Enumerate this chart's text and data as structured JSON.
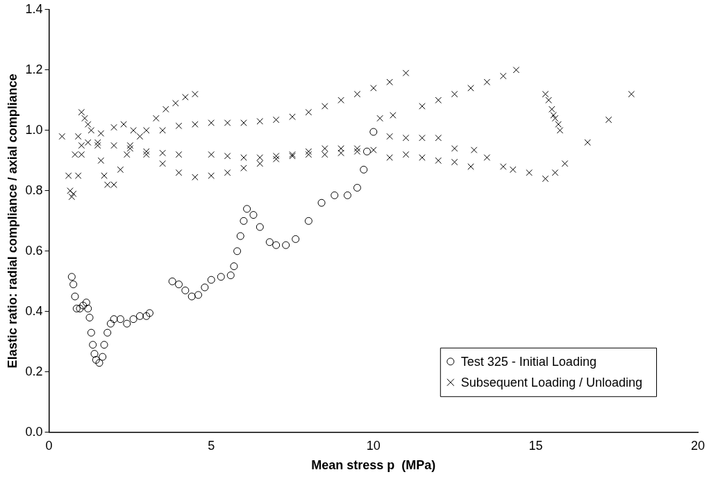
{
  "chart_data": {
    "type": "scatter",
    "xlabel": "Mean stress p  (MPa)",
    "ylabel": "Elastic ratio: radial compliance / axial compliance",
    "xlim": [
      0,
      20
    ],
    "ylim": [
      0,
      1.4
    ],
    "xticks": [
      0,
      5,
      10,
      15,
      20
    ],
    "yticks": [
      {
        "value": 0,
        "label": "0.0"
      },
      {
        "value": 0.2,
        "label": "0.2"
      },
      {
        "value": 0.4,
        "label": "0.4"
      },
      {
        "value": 0.6,
        "label": "0.6"
      },
      {
        "value": 0.8,
        "label": "0.8"
      },
      {
        "value": 1,
        "label": "1.0"
      },
      {
        "value": 1.2,
        "label": "1.2"
      },
      {
        "value": 1.4,
        "label": "1.4"
      }
    ],
    "grid": false,
    "legend": "bottom right",
    "series": [
      {
        "name": "Test 325 - Initial Loading",
        "color": "#000000",
        "marker": "circle",
        "x": [
          0.7,
          0.75,
          0.8,
          0.85,
          0.95,
          1.05,
          1.15,
          1.2,
          1.25,
          1.3,
          1.35,
          1.4,
          1.45,
          1.55,
          1.65,
          1.7,
          1.8,
          1.9,
          2.0,
          2.2,
          2.4,
          2.6,
          2.8,
          3.0,
          3.1,
          3.8,
          4.0,
          4.2,
          4.4,
          4.6,
          4.8,
          5.0,
          5.3,
          5.6,
          5.7,
          5.8,
          5.9,
          6.0,
          6.1,
          6.3,
          6.5,
          6.8,
          7.0,
          7.3,
          7.6,
          8.0,
          8.4,
          8.8,
          9.2,
          9.5,
          9.7,
          9.8,
          10.0
        ],
        "values": [
          0.515,
          0.49,
          0.45,
          0.41,
          0.41,
          0.42,
          0.43,
          0.41,
          0.38,
          0.33,
          0.29,
          0.26,
          0.24,
          0.23,
          0.25,
          0.29,
          0.33,
          0.36,
          0.375,
          0.375,
          0.36,
          0.375,
          0.385,
          0.385,
          0.395,
          0.5,
          0.49,
          0.47,
          0.45,
          0.455,
          0.48,
          0.505,
          0.515,
          0.52,
          0.55,
          0.6,
          0.65,
          0.7,
          0.74,
          0.72,
          0.68,
          0.63,
          0.62,
          0.62,
          0.64,
          0.7,
          0.76,
          0.785,
          0.785,
          0.81,
          0.87,
          0.93,
          0.995
        ]
      },
      {
        "name": "Subsequent Loading / Unloading",
        "color": "#000000",
        "marker": "cross",
        "x": [
          1.0,
          1.5,
          2.0,
          2.5,
          2.8,
          3.0,
          3.3,
          3.6,
          3.9,
          4.2,
          4.5,
          3.5,
          4.0,
          4.5,
          5.0,
          5.5,
          6.0,
          6.5,
          7.0,
          7.5,
          8.0,
          8.5,
          9.0,
          9.5,
          10.0,
          10.5,
          11.0,
          10.2,
          10.6,
          11.5,
          12.0,
          12.5,
          13.0,
          13.5,
          14.0,
          14.4,
          3.0,
          3.5,
          4.0,
          5.0,
          5.5,
          6.0,
          6.5,
          7.0,
          7.5,
          8.0,
          8.5,
          9.0,
          9.5,
          10.0,
          10.5,
          11.0,
          11.5,
          12.0,
          12.5,
          13.0,
          13.5,
          14.0,
          14.3,
          14.8,
          15.3,
          15.6,
          15.9,
          2.5,
          3.0,
          3.5,
          4.0,
          4.5,
          5.0,
          5.5,
          6.0,
          6.5,
          7.0,
          7.5,
          8.0,
          8.5,
          9.0,
          9.5,
          10.5,
          11.0,
          11.5,
          12.0,
          12.5,
          13.1,
          15.3,
          15.4,
          15.5,
          15.55,
          15.6,
          15.7,
          15.75,
          16.6,
          17.25,
          17.95,
          0.4,
          0.6,
          0.65,
          0.7,
          0.75,
          0.8,
          0.9,
          1.0,
          1.1,
          1.2,
          1.3,
          1.5,
          1.6,
          1.7,
          1.8,
          2.0,
          2.2,
          2.4,
          0.9,
          1.0,
          1.2,
          1.6,
          2.0,
          2.3,
          2.6
        ],
        "values": [
          0.95,
          0.96,
          0.95,
          0.95,
          0.98,
          1.0,
          1.04,
          1.07,
          1.09,
          1.11,
          1.12,
          1.0,
          1.015,
          1.02,
          1.025,
          1.025,
          1.025,
          1.03,
          1.035,
          1.045,
          1.06,
          1.08,
          1.1,
          1.12,
          1.14,
          1.16,
          1.19,
          1.04,
          1.05,
          1.08,
          1.1,
          1.12,
          1.14,
          1.16,
          1.18,
          1.2,
          0.93,
          0.925,
          0.92,
          0.92,
          0.915,
          0.91,
          0.91,
          0.915,
          0.915,
          0.92,
          0.92,
          0.925,
          0.93,
          0.935,
          0.91,
          0.92,
          0.91,
          0.9,
          0.895,
          0.88,
          0.91,
          0.88,
          0.87,
          0.86,
          0.84,
          0.86,
          0.89,
          0.94,
          0.92,
          0.89,
          0.86,
          0.845,
          0.85,
          0.86,
          0.875,
          0.89,
          0.905,
          0.92,
          0.93,
          0.94,
          0.94,
          0.94,
          0.98,
          0.975,
          0.975,
          0.975,
          0.94,
          0.935,
          1.12,
          1.1,
          1.07,
          1.05,
          1.04,
          1.02,
          1.0,
          0.96,
          1.035,
          1.12,
          0.98,
          0.85,
          0.8,
          0.78,
          0.79,
          0.92,
          0.98,
          1.06,
          1.04,
          1.02,
          1.0,
          0.95,
          0.9,
          0.85,
          0.82,
          0.82,
          0.87,
          0.92,
          0.85,
          0.92,
          0.96,
          0.99,
          1.01,
          1.02,
          1.0
        ]
      }
    ]
  }
}
